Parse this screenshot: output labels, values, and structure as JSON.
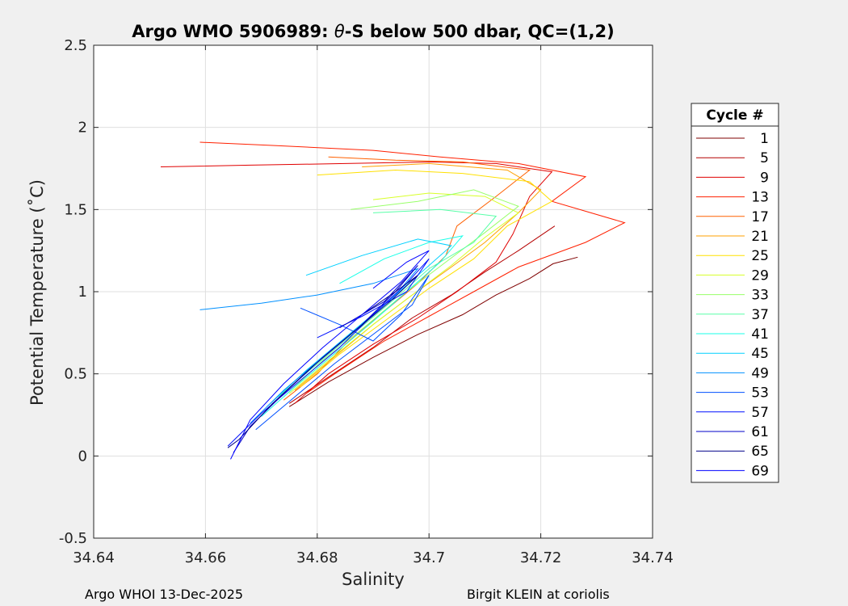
{
  "chart_data": {
    "type": "line",
    "title": "Argo WMO 5906989: θ-S below 500 dbar,  QC=(1,2)",
    "title_parts": [
      "Argo WMO 5906989: ",
      "θ",
      "-S below 500 dbar,  QC=(1,2)"
    ],
    "xlabel": "Salinity",
    "ylabel": "Potential Temperature (˚C)",
    "xlim": [
      34.64,
      34.74
    ],
    "ylim": [
      -0.5,
      2.5
    ],
    "xticks": [
      34.64,
      34.66,
      34.68,
      34.7,
      34.72,
      34.74
    ],
    "xtick_labels": [
      "34.64",
      "34.66",
      "34.68",
      "34.7",
      "34.72",
      "34.74"
    ],
    "yticks": [
      -0.5,
      0,
      0.5,
      1,
      1.5,
      2,
      2.5
    ],
    "ytick_labels": [
      "-0.5",
      "0",
      "0.5",
      "1",
      "1.5",
      "2",
      "2.5"
    ],
    "grid": true,
    "legend_title": "Cycle #",
    "legend_position": "right",
    "legend": [
      {
        "label": "1",
        "color": "#7f0000"
      },
      {
        "label": "5",
        "color": "#b50000"
      },
      {
        "label": "9",
        "color": "#e00000"
      },
      {
        "label": "13",
        "color": "#ff2000"
      },
      {
        "label": "17",
        "color": "#ff6000"
      },
      {
        "label": "21",
        "color": "#ffa000"
      },
      {
        "label": "25",
        "color": "#ffe000"
      },
      {
        "label": "29",
        "color": "#d8ff28"
      },
      {
        "label": "33",
        "color": "#98ff68"
      },
      {
        "label": "37",
        "color": "#58ffa8"
      },
      {
        "label": "41",
        "color": "#18ffe8"
      },
      {
        "label": "45",
        "color": "#00d0ff"
      },
      {
        "label": "49",
        "color": "#0090ff"
      },
      {
        "label": "53",
        "color": "#0050ff"
      },
      {
        "label": "57",
        "color": "#0010ff"
      },
      {
        "label": "61",
        "color": "#0000c8"
      },
      {
        "label": "65",
        "color": "#000088"
      },
      {
        "label": "69",
        "color": "#0000ff"
      }
    ],
    "series": [
      {
        "name": "1",
        "color": "#7f0000",
        "points": [
          [
            34.7266,
            1.21
          ],
          [
            34.7222,
            1.17
          ],
          [
            34.718,
            1.08
          ],
          [
            34.712,
            0.98
          ],
          [
            34.706,
            0.86
          ],
          [
            34.698,
            0.74
          ],
          [
            34.69,
            0.6
          ],
          [
            34.682,
            0.45
          ],
          [
            34.675,
            0.3
          ]
        ]
      },
      {
        "name": "5",
        "color": "#b50000",
        "points": [
          [
            34.7225,
            1.4
          ],
          [
            34.716,
            1.25
          ],
          [
            34.71,
            1.12
          ],
          [
            34.704,
            0.98
          ],
          [
            34.697,
            0.84
          ],
          [
            34.69,
            0.66
          ],
          [
            34.682,
            0.48
          ],
          [
            34.675,
            0.32
          ]
        ]
      },
      {
        "name": "9",
        "color": "#e00000",
        "points": [
          [
            34.652,
            1.76
          ],
          [
            34.668,
            1.77
          ],
          [
            34.685,
            1.78
          ],
          [
            34.7,
            1.79
          ],
          [
            34.712,
            1.78
          ],
          [
            34.722,
            1.73
          ],
          [
            34.718,
            1.58
          ],
          [
            34.715,
            1.35
          ],
          [
            34.712,
            1.18
          ],
          [
            34.705,
            1.0
          ],
          [
            34.698,
            0.84
          ],
          [
            34.69,
            0.68
          ],
          [
            34.682,
            0.5
          ],
          [
            34.676,
            0.32
          ]
        ]
      },
      {
        "name": "13",
        "color": "#ff2000",
        "points": [
          [
            34.659,
            1.91
          ],
          [
            34.672,
            1.89
          ],
          [
            34.69,
            1.86
          ],
          [
            34.702,
            1.82
          ],
          [
            34.716,
            1.78
          ],
          [
            34.728,
            1.7
          ],
          [
            34.722,
            1.55
          ],
          [
            34.735,
            1.42
          ],
          [
            34.728,
            1.3
          ],
          [
            34.716,
            1.15
          ],
          [
            34.708,
            1.0
          ],
          [
            34.7,
            0.85
          ],
          [
            34.692,
            0.7
          ],
          [
            34.684,
            0.52
          ],
          [
            34.678,
            0.38
          ]
        ]
      },
      {
        "name": "17",
        "color": "#ff6000",
        "points": [
          [
            34.682,
            1.82
          ],
          [
            34.694,
            1.8
          ],
          [
            34.706,
            1.79
          ],
          [
            34.718,
            1.74
          ],
          [
            34.712,
            1.58
          ],
          [
            34.705,
            1.4
          ],
          [
            34.703,
            1.22
          ],
          [
            34.698,
            1.05
          ],
          [
            34.692,
            0.88
          ],
          [
            34.685,
            0.68
          ],
          [
            34.68,
            0.5
          ],
          [
            34.674,
            0.34
          ]
        ]
      },
      {
        "name": "21",
        "color": "#ffa000",
        "points": [
          [
            34.688,
            1.76
          ],
          [
            34.7,
            1.78
          ],
          [
            34.714,
            1.74
          ],
          [
            34.72,
            1.62
          ],
          [
            34.716,
            1.48
          ],
          [
            34.71,
            1.3
          ],
          [
            34.704,
            1.15
          ],
          [
            34.697,
            0.98
          ],
          [
            34.69,
            0.8
          ],
          [
            34.683,
            0.6
          ],
          [
            34.676,
            0.4
          ]
        ]
      },
      {
        "name": "25",
        "color": "#ffe000",
        "points": [
          [
            34.68,
            1.71
          ],
          [
            34.694,
            1.74
          ],
          [
            34.706,
            1.72
          ],
          [
            34.718,
            1.67
          ],
          [
            34.722,
            1.55
          ],
          [
            34.714,
            1.4
          ],
          [
            34.708,
            1.2
          ],
          [
            34.7,
            1.02
          ],
          [
            34.692,
            0.82
          ],
          [
            34.684,
            0.62
          ],
          [
            34.677,
            0.42
          ]
        ]
      },
      {
        "name": "29",
        "color": "#d8ff28",
        "points": [
          [
            34.69,
            1.56
          ],
          [
            34.7,
            1.6
          ],
          [
            34.71,
            1.58
          ],
          [
            34.716,
            1.48
          ],
          [
            34.71,
            1.33
          ],
          [
            34.704,
            1.16
          ],
          [
            34.697,
            0.98
          ],
          [
            34.69,
            0.8
          ],
          [
            34.682,
            0.58
          ],
          [
            34.675,
            0.38
          ]
        ]
      },
      {
        "name": "33",
        "color": "#98ff68",
        "points": [
          [
            34.686,
            1.5
          ],
          [
            34.698,
            1.55
          ],
          [
            34.708,
            1.62
          ],
          [
            34.716,
            1.52
          ],
          [
            34.71,
            1.36
          ],
          [
            34.703,
            1.18
          ],
          [
            34.696,
            1.0
          ],
          [
            34.689,
            0.8
          ],
          [
            34.681,
            0.58
          ],
          [
            34.674,
            0.36
          ]
        ]
      },
      {
        "name": "37",
        "color": "#58ffa8",
        "points": [
          [
            34.69,
            1.48
          ],
          [
            34.702,
            1.5
          ],
          [
            34.712,
            1.46
          ],
          [
            34.708,
            1.3
          ],
          [
            34.7,
            1.14
          ],
          [
            34.694,
            0.96
          ],
          [
            34.687,
            0.76
          ],
          [
            34.68,
            0.56
          ],
          [
            34.673,
            0.36
          ]
        ]
      },
      {
        "name": "41",
        "color": "#18ffe8",
        "points": [
          [
            34.684,
            1.05
          ],
          [
            34.692,
            1.2
          ],
          [
            34.7,
            1.3
          ],
          [
            34.706,
            1.34
          ],
          [
            34.702,
            1.18
          ],
          [
            34.696,
            1.0
          ],
          [
            34.69,
            0.82
          ],
          [
            34.683,
            0.62
          ],
          [
            34.676,
            0.42
          ],
          [
            34.67,
            0.24
          ]
        ]
      },
      {
        "name": "45",
        "color": "#00d0ff",
        "points": [
          [
            34.678,
            1.1
          ],
          [
            34.688,
            1.22
          ],
          [
            34.698,
            1.32
          ],
          [
            34.704,
            1.28
          ],
          [
            34.698,
            1.1
          ],
          [
            34.692,
            0.92
          ],
          [
            34.685,
            0.72
          ],
          [
            34.678,
            0.52
          ],
          [
            34.671,
            0.3
          ]
        ]
      },
      {
        "name": "49",
        "color": "#0090ff",
        "points": [
          [
            34.659,
            0.89
          ],
          [
            34.67,
            0.93
          ],
          [
            34.68,
            0.98
          ],
          [
            34.69,
            1.05
          ],
          [
            34.698,
            1.14
          ],
          [
            34.694,
            0.98
          ],
          [
            34.688,
            0.8
          ],
          [
            34.681,
            0.6
          ],
          [
            34.674,
            0.4
          ],
          [
            34.668,
            0.2
          ]
        ]
      },
      {
        "name": "53",
        "color": "#0050ff",
        "points": [
          [
            34.677,
            0.9
          ],
          [
            34.684,
            0.8
          ],
          [
            34.69,
            0.7
          ],
          [
            34.695,
            0.86
          ],
          [
            34.7,
            1.1
          ],
          [
            34.697,
            0.92
          ],
          [
            34.69,
            0.74
          ],
          [
            34.683,
            0.56
          ],
          [
            34.676,
            0.36
          ],
          [
            34.669,
            0.16
          ]
        ]
      },
      {
        "name": "57",
        "color": "#0010ff",
        "points": [
          [
            34.68,
            0.72
          ],
          [
            34.688,
            0.85
          ],
          [
            34.696,
            1.0
          ],
          [
            34.7,
            1.2
          ],
          [
            34.696,
            1.05
          ],
          [
            34.69,
            0.86
          ],
          [
            34.684,
            0.66
          ],
          [
            34.677,
            0.46
          ],
          [
            34.67,
            0.26
          ],
          [
            34.664,
            0.06
          ]
        ]
      },
      {
        "name": "61",
        "color": "#0000c8",
        "points": [
          [
            34.684,
            0.78
          ],
          [
            34.692,
            0.94
          ],
          [
            34.698,
            1.16
          ],
          [
            34.694,
            1.0
          ],
          [
            34.688,
            0.8
          ],
          [
            34.681,
            0.6
          ],
          [
            34.674,
            0.38
          ],
          [
            34.668,
            0.18
          ],
          [
            34.665,
            0.02
          ]
        ]
      },
      {
        "name": "65",
        "color": "#000088",
        "points": [
          [
            34.688,
            0.86
          ],
          [
            34.694,
            1.0
          ],
          [
            34.698,
            1.1
          ],
          [
            34.693,
            0.94
          ],
          [
            34.686,
            0.74
          ],
          [
            34.679,
            0.54
          ],
          [
            34.672,
            0.32
          ],
          [
            34.666,
            0.1
          ],
          [
            34.664,
            0.05
          ]
        ]
      },
      {
        "name": "69",
        "color": "#0000ff",
        "points": [
          [
            34.69,
            1.02
          ],
          [
            34.696,
            1.18
          ],
          [
            34.7,
            1.25
          ],
          [
            34.695,
            1.06
          ],
          [
            34.688,
            0.86
          ],
          [
            34.681,
            0.66
          ],
          [
            34.674,
            0.44
          ],
          [
            34.668,
            0.22
          ],
          [
            34.6645,
            -0.02
          ]
        ]
      }
    ]
  },
  "footer": {
    "left": "Argo WHOI 13-Dec-2025",
    "right": "Birgit KLEIN at coriolis"
  }
}
